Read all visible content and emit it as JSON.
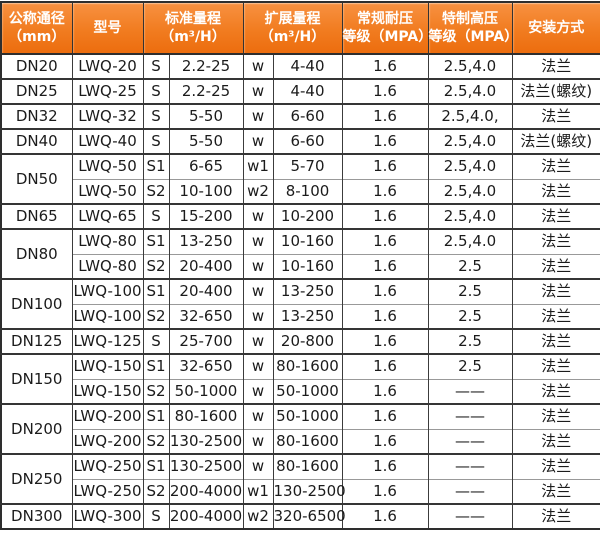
{
  "colors": {
    "header_gradient_top": "#f89141",
    "header_gradient_bottom": "#ec6d0e",
    "header_text": "#ffffff",
    "border_dark": "#2e2e2e",
    "border_light": "#999999",
    "cell_text": "#1b1b1b",
    "background": "#ffffff"
  },
  "header": {
    "dn": {
      "line1": "公称通径",
      "line2": "（mm）"
    },
    "model": {
      "line1": "型号"
    },
    "std": {
      "line1": "标准量程",
      "line2": "（m³/H）"
    },
    "ext": {
      "line1": "扩展量程",
      "line2": "（m³/H）"
    },
    "np": {
      "line1": "常规耐压",
      "line2": "等级（MPA）"
    },
    "hp": {
      "line1": "特制高压",
      "line2": "等级（MPA）"
    },
    "install": {
      "line1": "安装方式"
    }
  },
  "chart_data": {
    "type": "table",
    "header_row": [
      {
        "label": "公称通径（mm）",
        "colspan": 1
      },
      {
        "label": "型号",
        "colspan": 1
      },
      {
        "label": "标准量程（m³/H）",
        "colspan": 2
      },
      {
        "label": "扩展量程（m³/H）",
        "colspan": 2
      },
      {
        "label": "常规耐压等级（MPA）",
        "colspan": 1
      },
      {
        "label": "特制高压等级（MPA）",
        "colspan": 1
      },
      {
        "label": "安装方式",
        "colspan": 1
      }
    ],
    "groups": [
      {
        "dn": "DN20",
        "rows": [
          {
            "model": "LWQ-20",
            "std_grade": "S",
            "std_range": "2.2-25",
            "ext_grade": "w",
            "ext_range": "4-40",
            "normal_mpa": "1.6",
            "special_mpa": "2.5,4.0",
            "install": "法兰"
          }
        ]
      },
      {
        "dn": "DN25",
        "rows": [
          {
            "model": "LWQ-25",
            "std_grade": "S",
            "std_range": "2.2-25",
            "ext_grade": "w",
            "ext_range": "4-40",
            "normal_mpa": "1.6",
            "special_mpa": "2.5,4.0",
            "install": "法兰(螺纹)"
          }
        ]
      },
      {
        "dn": "DN32",
        "rows": [
          {
            "model": "LWQ-32",
            "std_grade": "S",
            "std_range": "5-50",
            "ext_grade": "w",
            "ext_range": "6-60",
            "normal_mpa": "1.6",
            "special_mpa": "2.5,4.0,",
            "install": "法兰"
          }
        ]
      },
      {
        "dn": "DN40",
        "rows": [
          {
            "model": "LWQ-40",
            "std_grade": "S",
            "std_range": "5-50",
            "ext_grade": "w",
            "ext_range": "6-60",
            "normal_mpa": "1.6",
            "special_mpa": "2.5,4.0",
            "install": "法兰(螺纹)"
          }
        ]
      },
      {
        "dn": "DN50",
        "rows": [
          {
            "model": "LWQ-50",
            "std_grade": "S1",
            "std_range": "6-65",
            "ext_grade": "w1",
            "ext_range": "5-70",
            "normal_mpa": "1.6",
            "special_mpa": "2.5,4.0",
            "install": "法兰"
          },
          {
            "model": "LWQ-50",
            "std_grade": "S2",
            "std_range": "10-100",
            "ext_grade": "w2",
            "ext_range": "8-100",
            "normal_mpa": "1.6",
            "special_mpa": "2.5,4.0",
            "install": "法兰"
          }
        ]
      },
      {
        "dn": "DN65",
        "rows": [
          {
            "model": "LWQ-65",
            "std_grade": "S",
            "std_range": "15-200",
            "ext_grade": "w",
            "ext_range": "10-200",
            "normal_mpa": "1.6",
            "special_mpa": "2.5,4.0",
            "install": "法兰"
          }
        ]
      },
      {
        "dn": "DN80",
        "rows": [
          {
            "model": "LWQ-80",
            "std_grade": "S1",
            "std_range": "13-250",
            "ext_grade": "w",
            "ext_range": "10-160",
            "normal_mpa": "1.6",
            "special_mpa": "2.5,4.0",
            "install": "法兰"
          },
          {
            "model": "LWQ-80",
            "std_grade": "S2",
            "std_range": "20-400",
            "ext_grade": "w",
            "ext_range": "10-160",
            "normal_mpa": "1.6",
            "special_mpa": "2.5",
            "install": "法兰"
          }
        ]
      },
      {
        "dn": "DN100",
        "rows": [
          {
            "model": "LWQ-100",
            "std_grade": "S1",
            "std_range": "20-400",
            "ext_grade": "w",
            "ext_range": "13-250",
            "normal_mpa": "1.6",
            "special_mpa": "2.5",
            "install": "法兰"
          },
          {
            "model": "LWQ-100",
            "std_grade": "S2",
            "std_range": "32-650",
            "ext_grade": "w",
            "ext_range": "13-250",
            "normal_mpa": "1.6",
            "special_mpa": "2.5",
            "install": "法兰"
          }
        ]
      },
      {
        "dn": "DN125",
        "rows": [
          {
            "model": "LWQ-125",
            "std_grade": "S",
            "std_range": "25-700",
            "ext_grade": "w",
            "ext_range": "20-800",
            "normal_mpa": "1.6",
            "special_mpa": "2.5",
            "install": "法兰"
          }
        ]
      },
      {
        "dn": "DN150",
        "rows": [
          {
            "model": "LWQ-150",
            "std_grade": "S1",
            "std_range": "32-650",
            "ext_grade": "w",
            "ext_range": "80-1600",
            "normal_mpa": "1.6",
            "special_mpa": "2.5",
            "install": "法兰"
          },
          {
            "model": "LWQ-150",
            "std_grade": "S2",
            "std_range": "50-1000",
            "ext_grade": "w",
            "ext_range": "50-1000",
            "normal_mpa": "1.6",
            "special_mpa": "——",
            "install": "法兰"
          }
        ]
      },
      {
        "dn": "DN200",
        "rows": [
          {
            "model": "LWQ-200",
            "std_grade": "S1",
            "std_range": "80-1600",
            "ext_grade": "w",
            "ext_range": "50-1000",
            "normal_mpa": "1.6",
            "special_mpa": "——",
            "install": "法兰"
          },
          {
            "model": "LWQ-200",
            "std_grade": "S2",
            "std_range": "130-2500",
            "ext_grade": "w",
            "ext_range": "80-1600",
            "normal_mpa": "1.6",
            "special_mpa": "——",
            "install": "法兰"
          }
        ]
      },
      {
        "dn": "DN250",
        "rows": [
          {
            "model": "LWQ-250",
            "std_grade": "S1",
            "std_range": "130-2500",
            "ext_grade": "w",
            "ext_range": "80-1600",
            "normal_mpa": "1.6",
            "special_mpa": "——",
            "install": "法兰"
          },
          {
            "model": "LWQ-250",
            "std_grade": "S2",
            "std_range": "200-4000",
            "ext_grade": "w1",
            "ext_range": "130-2500",
            "normal_mpa": "1.6",
            "special_mpa": "——",
            "install": "法兰"
          }
        ]
      },
      {
        "dn": "DN300",
        "rows": [
          {
            "model": "LWQ-300",
            "std_grade": "S",
            "std_range": "200-4000",
            "ext_grade": "w2",
            "ext_range": "320-6500",
            "normal_mpa": "1.6",
            "special_mpa": "——",
            "install": "法兰"
          }
        ]
      }
    ]
  }
}
